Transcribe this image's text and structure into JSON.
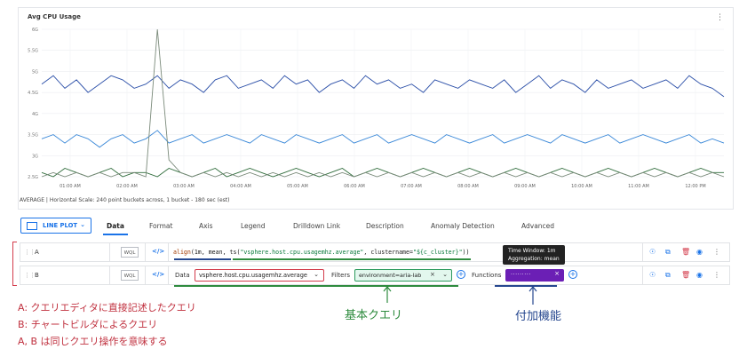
{
  "chart": {
    "title": "Avg CPU Usage",
    "footer": "AVERAGE  |  Horizontal Scale: 240 point buckets across, 1 bucket - 180 sec (est)"
  },
  "chart_data": {
    "type": "line",
    "ylim": [
      2.5,
      6.0
    ],
    "ytick_labels": [
      "2.5G",
      "3G",
      "3.5G",
      "4G",
      "4.5G",
      "5G",
      "5.5G",
      "6G"
    ],
    "ytick_values": [
      2.5,
      3.0,
      3.5,
      4.0,
      4.5,
      5.0,
      5.5,
      6.0
    ],
    "x_tick_labels": [
      "01:00 AM",
      "02:00 AM",
      "03:00 AM",
      "04:00 AM",
      "05:00 AM",
      "06:00 AM",
      "07:00 AM",
      "08:00 AM",
      "09:00 AM",
      "10:00 AM",
      "11:00 AM",
      "12:00 PM"
    ],
    "x_tick_values": [
      1,
      2,
      3,
      4,
      5,
      6,
      7,
      8,
      9,
      10,
      11,
      12
    ],
    "xlim": [
      0.5,
      12.5
    ],
    "grid": true,
    "series": [
      {
        "color": "#2b4fa8",
        "values": [
          4.7,
          4.9,
          4.6,
          4.8,
          4.5,
          4.7,
          4.9,
          4.8,
          4.6,
          4.7,
          4.9,
          4.6,
          4.8,
          4.7,
          4.5,
          4.8,
          4.9,
          4.6,
          4.7,
          4.8,
          4.6,
          4.9,
          4.7,
          4.8,
          4.5,
          4.7,
          4.8,
          4.6,
          4.9,
          4.7,
          4.8,
          4.6,
          4.7,
          4.5,
          4.8,
          4.7,
          4.6,
          4.8,
          4.7,
          4.6,
          4.8,
          4.5,
          4.7,
          4.9,
          4.6,
          4.8,
          4.7,
          4.5,
          4.8,
          4.6,
          4.7,
          4.8,
          4.6,
          4.7,
          4.8,
          4.6,
          4.9,
          4.7,
          4.6,
          4.4
        ]
      },
      {
        "color": "#3a88d8",
        "values": [
          3.4,
          3.5,
          3.3,
          3.5,
          3.4,
          3.2,
          3.4,
          3.5,
          3.3,
          3.4,
          3.6,
          3.3,
          3.4,
          3.5,
          3.3,
          3.4,
          3.5,
          3.4,
          3.3,
          3.5,
          3.4,
          3.3,
          3.5,
          3.4,
          3.3,
          3.4,
          3.5,
          3.3,
          3.4,
          3.5,
          3.3,
          3.4,
          3.5,
          3.4,
          3.3,
          3.5,
          3.4,
          3.3,
          3.4,
          3.5,
          3.3,
          3.4,
          3.5,
          3.4,
          3.3,
          3.5,
          3.4,
          3.3,
          3.4,
          3.5,
          3.3,
          3.4,
          3.5,
          3.4,
          3.3,
          3.4,
          3.5,
          3.3,
          3.4,
          3.3
        ]
      },
      {
        "color": "#2e6b3a",
        "values": [
          2.6,
          2.5,
          2.7,
          2.6,
          2.5,
          2.6,
          2.7,
          2.5,
          2.6,
          2.6,
          2.5,
          2.7,
          2.6,
          2.5,
          2.6,
          2.7,
          2.5,
          2.6,
          2.7,
          2.6,
          2.5,
          2.6,
          2.7,
          2.6,
          2.5,
          2.6,
          2.7,
          2.5,
          2.6,
          2.7,
          2.6,
          2.5,
          2.6,
          2.7,
          2.6,
          2.5,
          2.6,
          2.7,
          2.6,
          2.5,
          2.6,
          2.7,
          2.6,
          2.5,
          2.6,
          2.7,
          2.6,
          2.5,
          2.6,
          2.7,
          2.6,
          2.5,
          2.6,
          2.7,
          2.6,
          2.5,
          2.6,
          2.7,
          2.6,
          2.6
        ]
      },
      {
        "color": "#7a8a7a",
        "values": [
          2.5,
          2.6,
          2.5,
          2.6,
          2.5,
          2.6,
          2.5,
          2.6,
          2.6,
          2.5,
          6.0,
          2.9,
          2.6,
          2.5,
          2.6,
          2.5,
          2.6,
          2.5,
          2.6,
          2.5,
          2.6,
          2.5,
          2.6,
          2.5,
          2.6,
          2.5,
          2.6,
          2.5,
          2.6,
          2.5,
          2.6,
          2.5,
          2.6,
          2.5,
          2.6,
          2.5,
          2.6,
          2.5,
          2.6,
          2.5,
          2.6,
          2.5,
          2.6,
          2.5,
          2.6,
          2.5,
          2.6,
          2.5,
          2.6,
          2.5,
          2.6,
          2.5,
          2.6,
          2.5,
          2.6,
          2.5,
          2.6,
          2.5,
          2.6,
          2.5
        ]
      }
    ]
  },
  "tabs": {
    "lineplot": "LINE PLOT",
    "items": [
      "Data",
      "Format",
      "Axis",
      "Legend",
      "Drilldown Link",
      "Description",
      "Anomaly Detection",
      "Advanced"
    ]
  },
  "queries": {
    "a": {
      "name": "A",
      "mode": "WQL",
      "code_icon": "</>",
      "text_fn": "align",
      "text_args": "(1m, mean, ts(",
      "text_str1": "\"vsphere.host.cpu.usagemhz.average\"",
      "text_mid": ", clustername=",
      "text_str2": "\"${c_cluster}\"",
      "text_end": "))"
    },
    "b": {
      "name": "B",
      "mode": "WQL",
      "code_icon": "</>",
      "data_label": "Data",
      "data_value": "vsphere.host.cpu.usagemhz.average",
      "filters_label": "Filters",
      "filter_value": "environment=aria-lab",
      "functions_label": "Functions",
      "function_value": "·········"
    }
  },
  "tooltip": {
    "line1": "Time Window: 1m",
    "line2": "Aggregation: mean"
  },
  "annotations": {
    "kihon": "基本クエリ",
    "fuka": "付加機能",
    "note_a": "A: クエリエディタに直接記述したクエリ",
    "note_b": "B: チャートビルダによるクエリ",
    "note_ab": "A, B は同じクエリ操作を意味する"
  },
  "colors": {
    "accent": "#1a73e8",
    "red": "#c0313f",
    "green": "#2e8b3e",
    "navy": "#26478f",
    "purple": "#6b1fb5"
  }
}
